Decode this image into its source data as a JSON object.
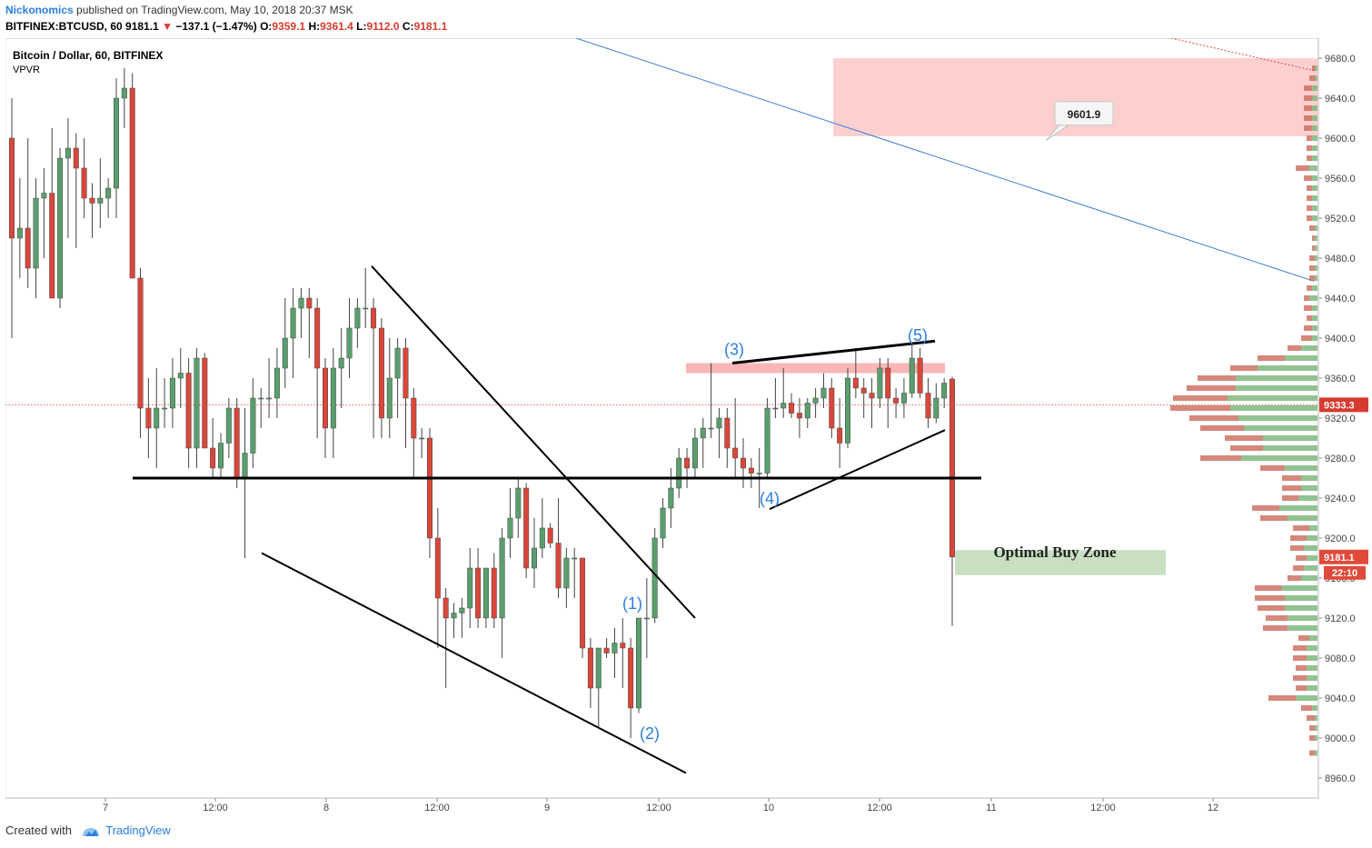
{
  "header": {
    "author": "Nickonomics",
    "published": "published on TradingView.com, May 10, 2018 20:37 MSK",
    "symbol": "BITFINEX:BTCUSD, 60",
    "last": "9181.1",
    "change_arrow": "▼",
    "change": "−137.1 (−1.47%)",
    "o_label": "O:",
    "o_value": "9359.1",
    "h_label": "H:",
    "h_value": "9361.4",
    "l_label": "L:",
    "l_value": "9112.0",
    "c_label": "C:",
    "c_value": "9181.1"
  },
  "legend": {
    "title": "Bitcoin / Dollar, 60, BITFINEX",
    "indicator": "VPVR"
  },
  "footer": {
    "created_with": "Created with",
    "brand": "TradingView"
  },
  "colors": {
    "up": "#5b9e6e",
    "down": "#d9473a",
    "resistance_zone": "#fdcaca",
    "buy_zone": "#c8e0c1",
    "wave_label": "#2a7de1",
    "trendline_blue": "#3d7ccf",
    "price_line": "#d63b2f"
  },
  "chart_data": {
    "type": "candlestick",
    "title": "Bitcoin / Dollar, 60, BITFINEX",
    "ylim": [
      8940,
      9700
    ],
    "yticks": [
      8960,
      9000,
      9040,
      9080,
      9120,
      9160,
      9200,
      9240,
      9280,
      9320,
      9360,
      9400,
      9440,
      9480,
      9520,
      9560,
      9600,
      9640,
      9680
    ],
    "y_tick_labels": [
      "8960.0",
      "9000.0",
      "9040.0",
      "9080.0",
      "9120.0",
      "9160.0",
      "9200.0",
      "9240.0",
      "9280.0",
      "9320.0",
      "9360.0",
      "9400.0",
      "9440.0",
      "9480.0",
      "9520.0",
      "9560.0",
      "9600.0",
      "9640.0",
      "9680.0"
    ],
    "x_tick_labels": [
      "7",
      "12:00",
      "8",
      "12:00",
      "9",
      "12:00",
      "10",
      "12:00",
      "11",
      "12:00",
      "12"
    ],
    "candles": [
      [
        9600,
        9640,
        9400,
        9500
      ],
      [
        9500,
        9560,
        9460,
        9510
      ],
      [
        9510,
        9600,
        9450,
        9470
      ],
      [
        9470,
        9560,
        9440,
        9540
      ],
      [
        9540,
        9570,
        9480,
        9545
      ],
      [
        9545,
        9610,
        9440,
        9440
      ],
      [
        9440,
        9590,
        9430,
        9580
      ],
      [
        9580,
        9620,
        9500,
        9590
      ],
      [
        9590,
        9605,
        9490,
        9570
      ],
      [
        9570,
        9600,
        9520,
        9540
      ],
      [
        9540,
        9555,
        9500,
        9535
      ],
      [
        9535,
        9580,
        9510,
        9540
      ],
      [
        9540,
        9560,
        9520,
        9550
      ],
      [
        9550,
        9660,
        9520,
        9640
      ],
      [
        9640,
        9670,
        9610,
        9650
      ],
      [
        9650,
        9665,
        9460,
        9460
      ],
      [
        9460,
        9470,
        9300,
        9330
      ],
      [
        9330,
        9360,
        9280,
        9310
      ],
      [
        9310,
        9370,
        9270,
        9330
      ],
      [
        9330,
        9360,
        9310,
        9330
      ],
      [
        9330,
        9380,
        9310,
        9360
      ],
      [
        9360,
        9390,
        9330,
        9365
      ],
      [
        9365,
        9380,
        9270,
        9290
      ],
      [
        9290,
        9390,
        9270,
        9380
      ],
      [
        9380,
        9385,
        9290,
        9290
      ],
      [
        9290,
        9320,
        9260,
        9270
      ],
      [
        9270,
        9305,
        9260,
        9295
      ],
      [
        9295,
        9340,
        9280,
        9330
      ],
      [
        9330,
        9340,
        9250,
        9260
      ],
      [
        9260,
        9330,
        9180,
        9285
      ],
      [
        9285,
        9360,
        9270,
        9340
      ],
      [
        9340,
        9350,
        9310,
        9340
      ],
      [
        9340,
        9380,
        9320,
        9340
      ],
      [
        9340,
        9390,
        9320,
        9370
      ],
      [
        9370,
        9440,
        9350,
        9400
      ],
      [
        9400,
        9450,
        9360,
        9430
      ],
      [
        9430,
        9450,
        9400,
        9440
      ],
      [
        9440,
        9450,
        9380,
        9430
      ],
      [
        9430,
        9440,
        9300,
        9370
      ],
      [
        9370,
        9380,
        9280,
        9310
      ],
      [
        9310,
        9390,
        9280,
        9370
      ],
      [
        9370,
        9410,
        9330,
        9380
      ],
      [
        9380,
        9440,
        9360,
        9410
      ],
      [
        9410,
        9440,
        9390,
        9430
      ],
      [
        9430,
        9470,
        9410,
        9430
      ],
      [
        9430,
        9440,
        9300,
        9410
      ],
      [
        9410,
        9420,
        9300,
        9320
      ],
      [
        9320,
        9400,
        9300,
        9360
      ],
      [
        9360,
        9400,
        9320,
        9390
      ],
      [
        9390,
        9400,
        9290,
        9340
      ],
      [
        9340,
        9350,
        9260,
        9300
      ],
      [
        9300,
        9310,
        9280,
        9300
      ],
      [
        9300,
        9310,
        9180,
        9200
      ],
      [
        9200,
        9230,
        9090,
        9140
      ],
      [
        9140,
        9150,
        9050,
        9120
      ],
      [
        9120,
        9135,
        9100,
        9125
      ],
      [
        9125,
        9140,
        9100,
        9130
      ],
      [
        9130,
        9190,
        9110,
        9170
      ],
      [
        9170,
        9190,
        9110,
        9120
      ],
      [
        9120,
        9170,
        9110,
        9170
      ],
      [
        9170,
        9185,
        9110,
        9120
      ],
      [
        9120,
        9210,
        9080,
        9200
      ],
      [
        9200,
        9250,
        9180,
        9220
      ],
      [
        9220,
        9260,
        9200,
        9250
      ],
      [
        9250,
        9255,
        9160,
        9170
      ],
      [
        9170,
        9220,
        9150,
        9190
      ],
      [
        9190,
        9240,
        9180,
        9210
      ],
      [
        9210,
        9215,
        9190,
        9195
      ],
      [
        9195,
        9240,
        9140,
        9150
      ],
      [
        9150,
        9190,
        9130,
        9180
      ],
      [
        9180,
        9190,
        9140,
        9180
      ],
      [
        9180,
        9180,
        9080,
        9090
      ],
      [
        9090,
        9100,
        9030,
        9050
      ],
      [
        9050,
        9090,
        9010,
        9090
      ],
      [
        9090,
        9100,
        9080,
        9085
      ],
      [
        9085,
        9110,
        9060,
        9095
      ],
      [
        9095,
        9120,
        9050,
        9090
      ],
      [
        9090,
        9100,
        9000,
        9030
      ],
      [
        9030,
        9120,
        9025,
        9120
      ],
      [
        9120,
        9160,
        9080,
        9120
      ],
      [
        9120,
        9210,
        9115,
        9200
      ],
      [
        9200,
        9240,
        9190,
        9230
      ],
      [
        9230,
        9270,
        9210,
        9250
      ],
      [
        9250,
        9290,
        9240,
        9280
      ],
      [
        9280,
        9290,
        9250,
        9270
      ],
      [
        9270,
        9310,
        9260,
        9300
      ],
      [
        9300,
        9320,
        9270,
        9310
      ],
      [
        9310,
        9375,
        9300,
        9310
      ],
      [
        9310,
        9330,
        9280,
        9320
      ],
      [
        9320,
        9330,
        9270,
        9290
      ],
      [
        9290,
        9340,
        9260,
        9280
      ],
      [
        9280,
        9300,
        9250,
        9270
      ],
      [
        9270,
        9280,
        9250,
        9265
      ],
      [
        9265,
        9290,
        9230,
        9265
      ],
      [
        9265,
        9340,
        9260,
        9330
      ],
      [
        9330,
        9360,
        9320,
        9330
      ],
      [
        9330,
        9370,
        9320,
        9335
      ],
      [
        9335,
        9345,
        9320,
        9325
      ],
      [
        9325,
        9340,
        9300,
        9320
      ],
      [
        9320,
        9340,
        9310,
        9335
      ],
      [
        9335,
        9350,
        9320,
        9340
      ],
      [
        9340,
        9365,
        9330,
        9350
      ],
      [
        9350,
        9360,
        9300,
        9310
      ],
      [
        9310,
        9340,
        9270,
        9295
      ],
      [
        9295,
        9370,
        9290,
        9360
      ],
      [
        9360,
        9390,
        9340,
        9350
      ],
      [
        9350,
        9360,
        9320,
        9345
      ],
      [
        9345,
        9360,
        9310,
        9340
      ],
      [
        9340,
        9380,
        9330,
        9370
      ],
      [
        9370,
        9380,
        9310,
        9340
      ],
      [
        9340,
        9350,
        9320,
        9335
      ],
      [
        9335,
        9360,
        9320,
        9345
      ],
      [
        9345,
        9395,
        9340,
        9380
      ],
      [
        9380,
        9390,
        9340,
        9345
      ],
      [
        9345,
        9360,
        9310,
        9320
      ],
      [
        9320,
        9355,
        9315,
        9340
      ],
      [
        9340,
        9360,
        9330,
        9355
      ],
      [
        9359.1,
        9361.4,
        9112.0,
        9181.1
      ]
    ],
    "support_level": 9260,
    "current_price_marker": "9181.1",
    "current_line_marker": "9333.3",
    "countdown": "22:10",
    "resistance_zone": {
      "label": "9601.9",
      "low": 9601.9,
      "high": 9680
    },
    "buy_zone": {
      "label": "Optimal Buy Zone",
      "low": 9163,
      "high": 9188
    },
    "small_zone": {
      "low": 9365,
      "high": 9375
    },
    "wave_labels": [
      "(1)",
      "(2)",
      "(3)",
      "(4)",
      "(5)"
    ],
    "volume_profile": [
      [
        8985,
        2,
        1
      ],
      [
        9000,
        2,
        1
      ],
      [
        9010,
        2,
        1
      ],
      [
        9020,
        3,
        1
      ],
      [
        9030,
        4,
        2
      ],
      [
        9040,
        10,
        8
      ],
      [
        9050,
        4,
        4
      ],
      [
        9060,
        5,
        4
      ],
      [
        9070,
        4,
        4
      ],
      [
        9080,
        5,
        4
      ],
      [
        9090,
        5,
        4
      ],
      [
        9100,
        4,
        3
      ],
      [
        9110,
        9,
        11
      ],
      [
        9120,
        8,
        11
      ],
      [
        9130,
        10,
        12
      ],
      [
        9140,
        11,
        12
      ],
      [
        9150,
        10,
        13
      ],
      [
        9160,
        5,
        6
      ],
      [
        9170,
        4,
        5
      ],
      [
        9180,
        4,
        4
      ],
      [
        9190,
        5,
        5
      ],
      [
        9200,
        6,
        4
      ],
      [
        9210,
        6,
        3
      ],
      [
        9220,
        10,
        11
      ],
      [
        9230,
        10,
        14
      ],
      [
        9240,
        6,
        7
      ],
      [
        9250,
        7,
        6
      ],
      [
        9260,
        7,
        6
      ],
      [
        9270,
        9,
        12
      ],
      [
        9280,
        15,
        28
      ],
      [
        9290,
        12,
        20
      ],
      [
        9300,
        14,
        20
      ],
      [
        9310,
        16,
        27
      ],
      [
        9320,
        18,
        29
      ],
      [
        9330,
        22,
        32
      ],
      [
        9340,
        20,
        33
      ],
      [
        9350,
        18,
        30
      ],
      [
        9360,
        14,
        30
      ],
      [
        9370,
        10,
        22
      ],
      [
        9380,
        10,
        12
      ],
      [
        9390,
        5,
        6
      ],
      [
        9400,
        4,
        2
      ],
      [
        9410,
        3,
        2
      ],
      [
        9420,
        2,
        2
      ],
      [
        9430,
        3,
        2
      ],
      [
        9440,
        2,
        3
      ],
      [
        9450,
        2,
        2
      ],
      [
        9460,
        2,
        1
      ],
      [
        9470,
        2,
        1
      ],
      [
        9480,
        2,
        1
      ],
      [
        9490,
        1,
        1
      ],
      [
        9500,
        1,
        1
      ],
      [
        9510,
        2,
        1
      ],
      [
        9520,
        2,
        2
      ],
      [
        9530,
        2,
        2
      ],
      [
        9540,
        2,
        2
      ],
      [
        9550,
        2,
        2
      ],
      [
        9560,
        3,
        2
      ],
      [
        9570,
        5,
        3
      ],
      [
        9580,
        2,
        2
      ],
      [
        9590,
        2,
        2
      ],
      [
        9600,
        2,
        2
      ],
      [
        9610,
        3,
        2
      ],
      [
        9620,
        3,
        2
      ],
      [
        9630,
        3,
        2
      ],
      [
        9640,
        3,
        2
      ],
      [
        9650,
        3,
        2
      ],
      [
        9660,
        2,
        1
      ],
      [
        9670,
        1,
        1
      ]
    ]
  }
}
